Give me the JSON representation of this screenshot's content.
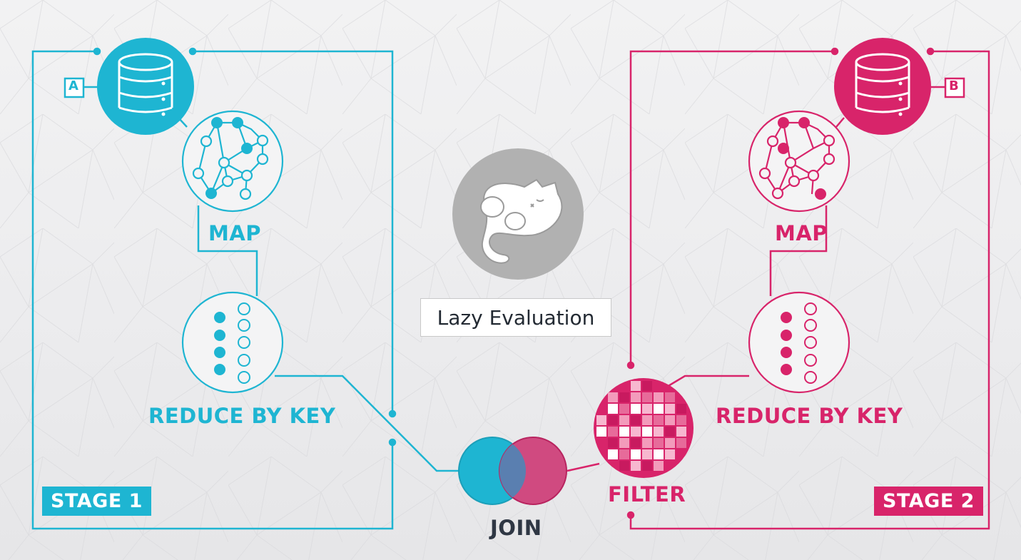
{
  "colors": {
    "cyan": "#1eb5d2",
    "pink": "#d8246a",
    "gray": "#b1b1b1",
    "dark": "#2f3744"
  },
  "stage1": {
    "label": "STAGE 1",
    "source": "A",
    "map": "MAP",
    "reduce": "REDUCE BY KEY"
  },
  "stage2": {
    "label": "STAGE 2",
    "source": "B",
    "map": "MAP",
    "reduce": "REDUCE BY KEY",
    "filter": "FILTER"
  },
  "join": "JOIN",
  "center": {
    "caption": "Lazy Evaluation",
    "icon": "sleeping-cat-icon"
  }
}
